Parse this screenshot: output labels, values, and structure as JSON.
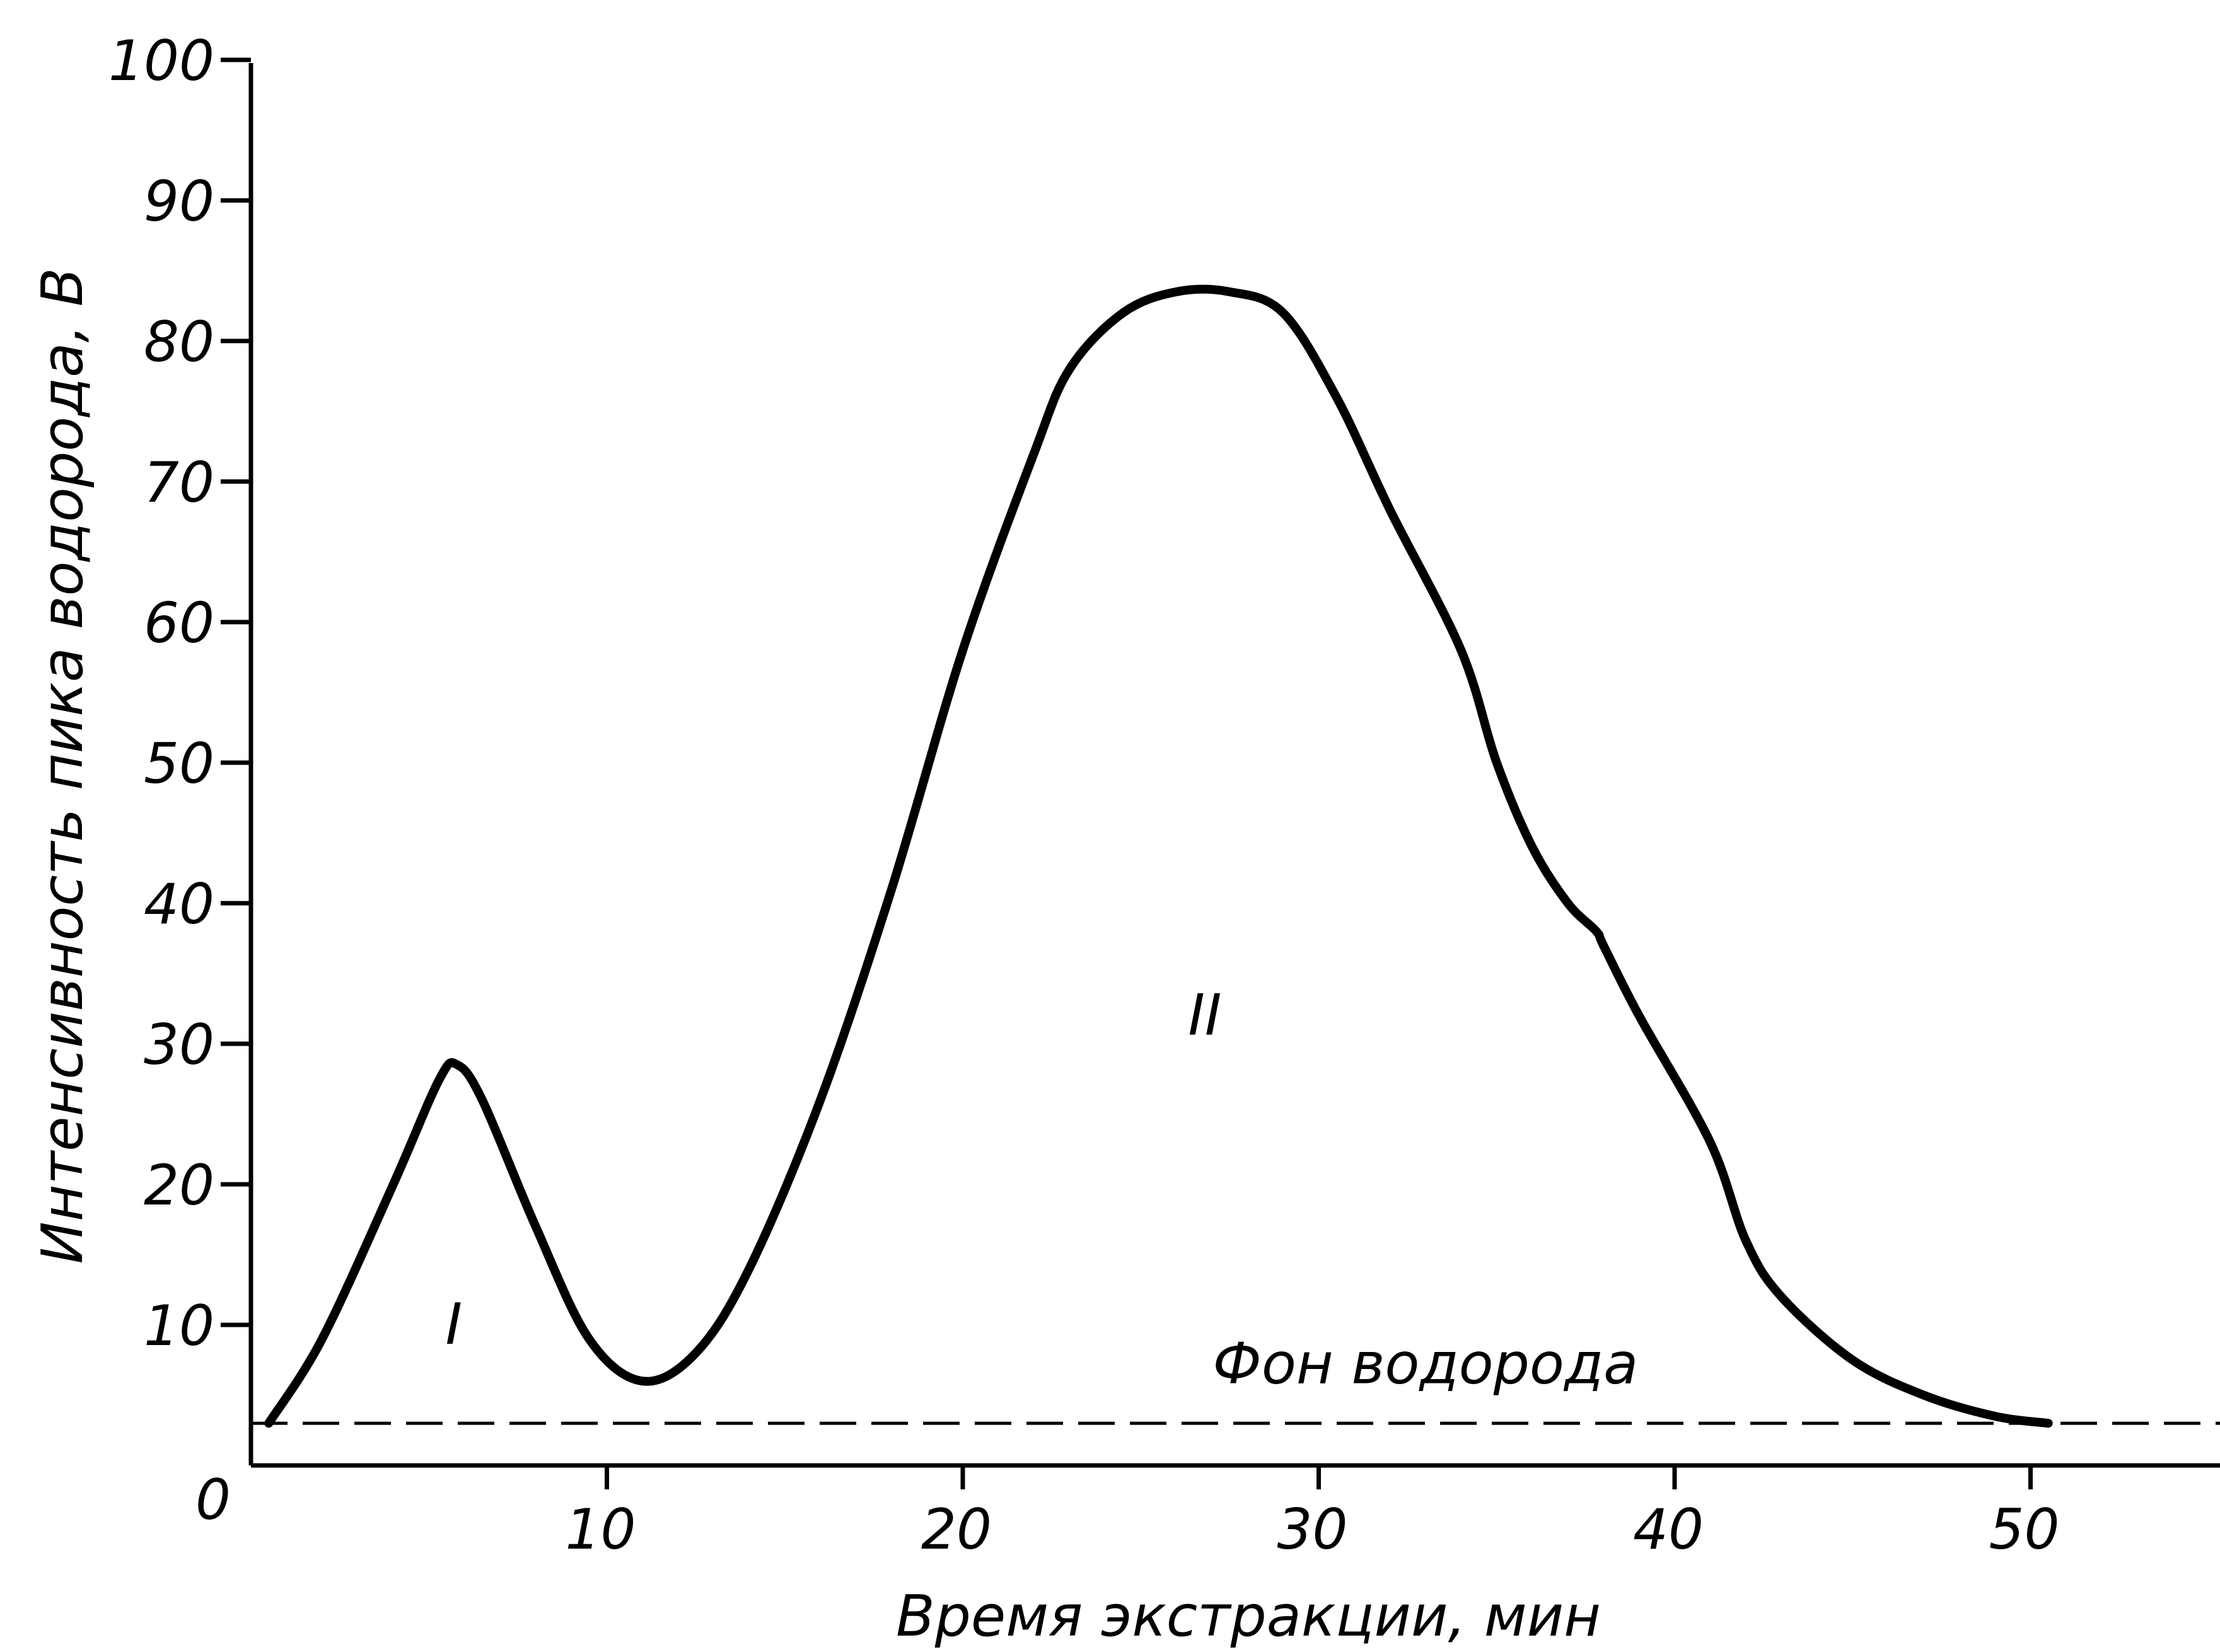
{
  "chart_data": {
    "type": "line",
    "title": "",
    "xlabel": "Время экстракции, мин",
    "ylabel": "Интенсивность пика водорода, В",
    "xlim": [
      0,
      55
    ],
    "ylim": [
      0,
      100
    ],
    "origin_label": "0",
    "x_ticks": [
      10,
      20,
      30,
      40,
      50
    ],
    "y_ticks": [
      10,
      20,
      30,
      40,
      50,
      60,
      70,
      80,
      90,
      100
    ],
    "grid": false,
    "series": [
      {
        "name": "",
        "x": [
          0.5,
          2,
          4,
          5.3,
          5.8,
          6.5,
          8,
          9.5,
          11,
          12.5,
          14,
          16,
          18,
          20,
          22,
          23,
          24.5,
          26,
          27.5,
          29,
          30.5,
          32,
          34,
          35,
          36,
          37,
          37.8,
          38,
          39,
          41,
          42,
          43,
          45,
          47,
          49,
          50.5
        ],
        "y": [
          3,
          9,
          20,
          27.5,
          28.5,
          26,
          17,
          9,
          6,
          8,
          14,
          26,
          41,
          58,
          72,
          78,
          82,
          83.5,
          83.5,
          82,
          76,
          68,
          58,
          50,
          44,
          40,
          38,
          37,
          32,
          23,
          16,
          12,
          7.5,
          5,
          3.5,
          3
        ]
      }
    ],
    "background": {
      "y": 3,
      "style": "dashed",
      "label": "Фон водорода",
      "label_at": [
        33,
        7.2
      ]
    },
    "annotations": [
      {
        "text": "I",
        "x": 5.7,
        "y": 10
      },
      {
        "text": "II",
        "x": 26.8,
        "y": 32
      }
    ]
  }
}
